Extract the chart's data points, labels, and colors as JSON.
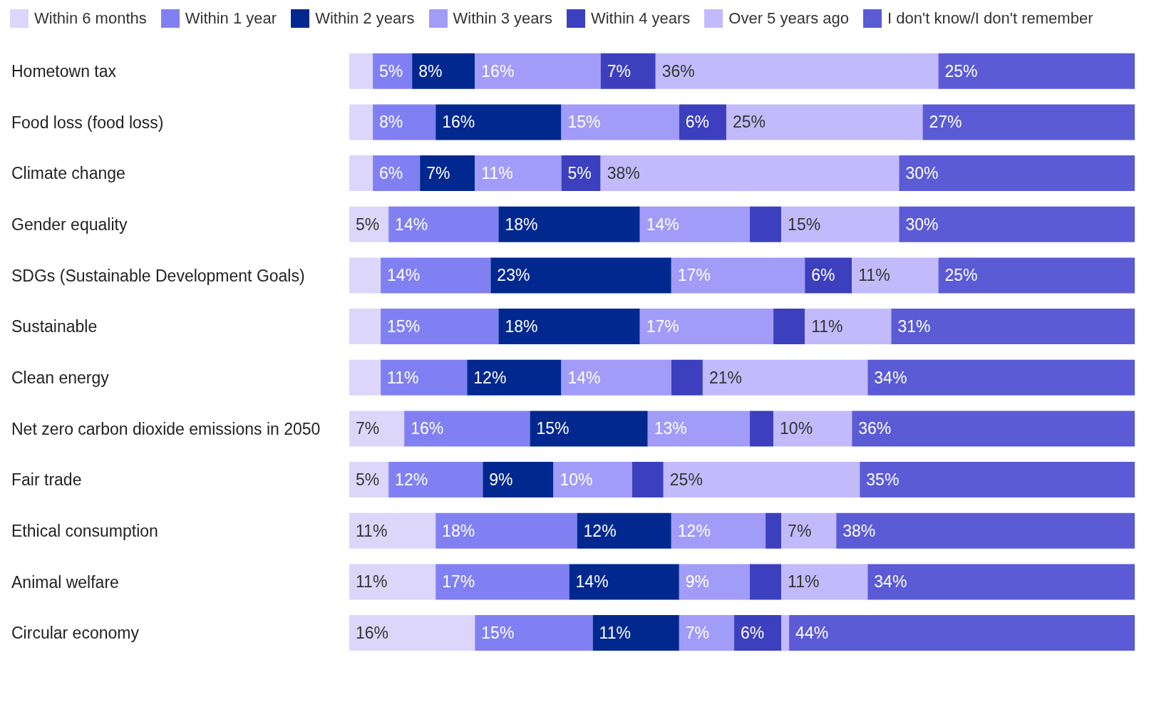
{
  "chart_data": {
    "type": "bar",
    "orientation": "horizontal",
    "stacked": true,
    "legend": "top left",
    "tick_labels": "y",
    "xlim": [
      0,
      100
    ],
    "categories": [
      "Hometown tax",
      "Food loss (food loss)",
      "Climate change",
      "Gender equality",
      "SDGs (Sustainable Development Goals)",
      "Sustainable",
      "Clean energy",
      "Net zero carbon dioxide emissions in 2050",
      "Fair trade",
      "Ethical consumption",
      "Animal welfare",
      "Circular economy"
    ],
    "series": [
      {
        "name": "Within 6 months",
        "color": "#dcd6fb",
        "values": [
          3,
          3,
          3,
          5,
          4,
          4,
          4,
          7,
          5,
          11,
          11,
          16
        ],
        "value_labels": [
          null,
          null,
          null,
          "5%",
          null,
          null,
          null,
          "7%",
          "5%",
          "11%",
          "11%",
          "16%"
        ]
      },
      {
        "name": "Within 1 year",
        "color": "#8180f2",
        "values": [
          5,
          8,
          6,
          14,
          14,
          15,
          11,
          16,
          12,
          18,
          17,
          15
        ],
        "value_labels": [
          "5%",
          "8%",
          "6%",
          "14%",
          "14%",
          "15%",
          "11%",
          "16%",
          "12%",
          "18%",
          "17%",
          "15%"
        ]
      },
      {
        "name": "Within 2 years",
        "color": "#00288f",
        "values": [
          8,
          16,
          7,
          18,
          23,
          18,
          12,
          15,
          9,
          12,
          14,
          11
        ],
        "value_labels": [
          "8%",
          "16%",
          "7%",
          "18%",
          "23%",
          "18%",
          "12%",
          "15%",
          "9%",
          "12%",
          "14%",
          "11%"
        ]
      },
      {
        "name": "Within 3 years",
        "color": "#a19cf7",
        "values": [
          16,
          15,
          11,
          14,
          17,
          17,
          14,
          13,
          10,
          12,
          9,
          7
        ],
        "value_labels": [
          "16%",
          "15%",
          "11%",
          "14%",
          "17%",
          "17%",
          "14%",
          "13%",
          "10%",
          "12%",
          "9%",
          "7%"
        ]
      },
      {
        "name": "Within 4 years",
        "color": "#3c40bf",
        "values": [
          7,
          6,
          5,
          4,
          6,
          4,
          4,
          3,
          4,
          2,
          4,
          6
        ],
        "value_labels": [
          "7%",
          "6%",
          "5%",
          null,
          "6%",
          null,
          null,
          null,
          null,
          null,
          null,
          "6%"
        ]
      },
      {
        "name": "Over 5 years ago",
        "color": "#c2bafb",
        "values": [
          36,
          25,
          38,
          15,
          11,
          11,
          21,
          10,
          25,
          7,
          11,
          1
        ],
        "value_labels": [
          "36%",
          "25%",
          "38%",
          "15%",
          "11%",
          "11%",
          "21%",
          "10%",
          "25%",
          "7%",
          "11%",
          null
        ]
      },
      {
        "name": "I don't know/I don't remember",
        "color": "#5b5bd6",
        "values": [
          25,
          27,
          30,
          30,
          25,
          31,
          34,
          36,
          35,
          38,
          34,
          44
        ],
        "value_labels": [
          "25%",
          "27%",
          "30%",
          "30%",
          "25%",
          "31%",
          "34%",
          "36%",
          "35%",
          "38%",
          "34%",
          "44%"
        ]
      }
    ]
  }
}
